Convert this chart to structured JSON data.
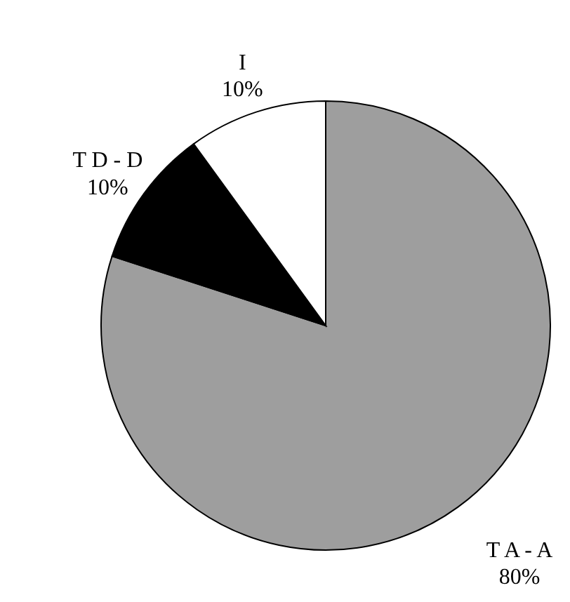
{
  "chart_data": {
    "type": "pie",
    "categories": [
      "T A - A",
      "T D - D",
      "I"
    ],
    "values": [
      80,
      10,
      10
    ],
    "colors": [
      "#9e9e9e",
      "#000000",
      "#ffffff"
    ],
    "value_labels": [
      "80%",
      "10%",
      "10%"
    ],
    "legend": false
  }
}
